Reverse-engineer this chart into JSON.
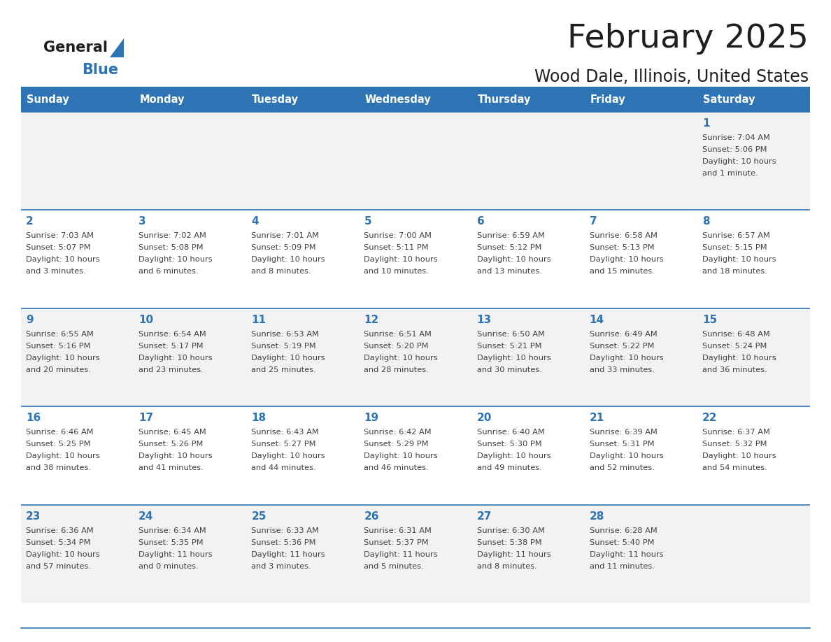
{
  "title": "February 2025",
  "subtitle": "Wood Dale, Illinois, United States",
  "header_color": "#2e74b5",
  "header_text_color": "#ffffff",
  "cell_bg_light": "#f2f2f2",
  "cell_bg_white": "#ffffff",
  "day_number_color": "#2e74b5",
  "text_color": "#404040",
  "separator_color": "#2e74b5",
  "days_of_week": [
    "Sunday",
    "Monday",
    "Tuesday",
    "Wednesday",
    "Thursday",
    "Friday",
    "Saturday"
  ],
  "weeks": [
    [
      {
        "day": "",
        "sunrise": "",
        "sunset": "",
        "daylight": ""
      },
      {
        "day": "",
        "sunrise": "",
        "sunset": "",
        "daylight": ""
      },
      {
        "day": "",
        "sunrise": "",
        "sunset": "",
        "daylight": ""
      },
      {
        "day": "",
        "sunrise": "",
        "sunset": "",
        "daylight": ""
      },
      {
        "day": "",
        "sunrise": "",
        "sunset": "",
        "daylight": ""
      },
      {
        "day": "",
        "sunrise": "",
        "sunset": "",
        "daylight": ""
      },
      {
        "day": "1",
        "sunrise": "7:04 AM",
        "sunset": "5:06 PM",
        "daylight": "10 hours\nand 1 minute."
      }
    ],
    [
      {
        "day": "2",
        "sunrise": "7:03 AM",
        "sunset": "5:07 PM",
        "daylight": "10 hours\nand 3 minutes."
      },
      {
        "day": "3",
        "sunrise": "7:02 AM",
        "sunset": "5:08 PM",
        "daylight": "10 hours\nand 6 minutes."
      },
      {
        "day": "4",
        "sunrise": "7:01 AM",
        "sunset": "5:09 PM",
        "daylight": "10 hours\nand 8 minutes."
      },
      {
        "day": "5",
        "sunrise": "7:00 AM",
        "sunset": "5:11 PM",
        "daylight": "10 hours\nand 10 minutes."
      },
      {
        "day": "6",
        "sunrise": "6:59 AM",
        "sunset": "5:12 PM",
        "daylight": "10 hours\nand 13 minutes."
      },
      {
        "day": "7",
        "sunrise": "6:58 AM",
        "sunset": "5:13 PM",
        "daylight": "10 hours\nand 15 minutes."
      },
      {
        "day": "8",
        "sunrise": "6:57 AM",
        "sunset": "5:15 PM",
        "daylight": "10 hours\nand 18 minutes."
      }
    ],
    [
      {
        "day": "9",
        "sunrise": "6:55 AM",
        "sunset": "5:16 PM",
        "daylight": "10 hours\nand 20 minutes."
      },
      {
        "day": "10",
        "sunrise": "6:54 AM",
        "sunset": "5:17 PM",
        "daylight": "10 hours\nand 23 minutes."
      },
      {
        "day": "11",
        "sunrise": "6:53 AM",
        "sunset": "5:19 PM",
        "daylight": "10 hours\nand 25 minutes."
      },
      {
        "day": "12",
        "sunrise": "6:51 AM",
        "sunset": "5:20 PM",
        "daylight": "10 hours\nand 28 minutes."
      },
      {
        "day": "13",
        "sunrise": "6:50 AM",
        "sunset": "5:21 PM",
        "daylight": "10 hours\nand 30 minutes."
      },
      {
        "day": "14",
        "sunrise": "6:49 AM",
        "sunset": "5:22 PM",
        "daylight": "10 hours\nand 33 minutes."
      },
      {
        "day": "15",
        "sunrise": "6:48 AM",
        "sunset": "5:24 PM",
        "daylight": "10 hours\nand 36 minutes."
      }
    ],
    [
      {
        "day": "16",
        "sunrise": "6:46 AM",
        "sunset": "5:25 PM",
        "daylight": "10 hours\nand 38 minutes."
      },
      {
        "day": "17",
        "sunrise": "6:45 AM",
        "sunset": "5:26 PM",
        "daylight": "10 hours\nand 41 minutes."
      },
      {
        "day": "18",
        "sunrise": "6:43 AM",
        "sunset": "5:27 PM",
        "daylight": "10 hours\nand 44 minutes."
      },
      {
        "day": "19",
        "sunrise": "6:42 AM",
        "sunset": "5:29 PM",
        "daylight": "10 hours\nand 46 minutes."
      },
      {
        "day": "20",
        "sunrise": "6:40 AM",
        "sunset": "5:30 PM",
        "daylight": "10 hours\nand 49 minutes."
      },
      {
        "day": "21",
        "sunrise": "6:39 AM",
        "sunset": "5:31 PM",
        "daylight": "10 hours\nand 52 minutes."
      },
      {
        "day": "22",
        "sunrise": "6:37 AM",
        "sunset": "5:32 PM",
        "daylight": "10 hours\nand 54 minutes."
      }
    ],
    [
      {
        "day": "23",
        "sunrise": "6:36 AM",
        "sunset": "5:34 PM",
        "daylight": "10 hours\nand 57 minutes."
      },
      {
        "day": "24",
        "sunrise": "6:34 AM",
        "sunset": "5:35 PM",
        "daylight": "11 hours\nand 0 minutes."
      },
      {
        "day": "25",
        "sunrise": "6:33 AM",
        "sunset": "5:36 PM",
        "daylight": "11 hours\nand 3 minutes."
      },
      {
        "day": "26",
        "sunrise": "6:31 AM",
        "sunset": "5:37 PM",
        "daylight": "11 hours\nand 5 minutes."
      },
      {
        "day": "27",
        "sunrise": "6:30 AM",
        "sunset": "5:38 PM",
        "daylight": "11 hours\nand 8 minutes."
      },
      {
        "day": "28",
        "sunrise": "6:28 AM",
        "sunset": "5:40 PM",
        "daylight": "11 hours\nand 11 minutes."
      },
      {
        "day": "",
        "sunrise": "",
        "sunset": "",
        "daylight": ""
      }
    ]
  ],
  "row_bg_colors": [
    "#f2f2f2",
    "#ffffff",
    "#f2f2f2",
    "#ffffff",
    "#f2f2f2"
  ]
}
